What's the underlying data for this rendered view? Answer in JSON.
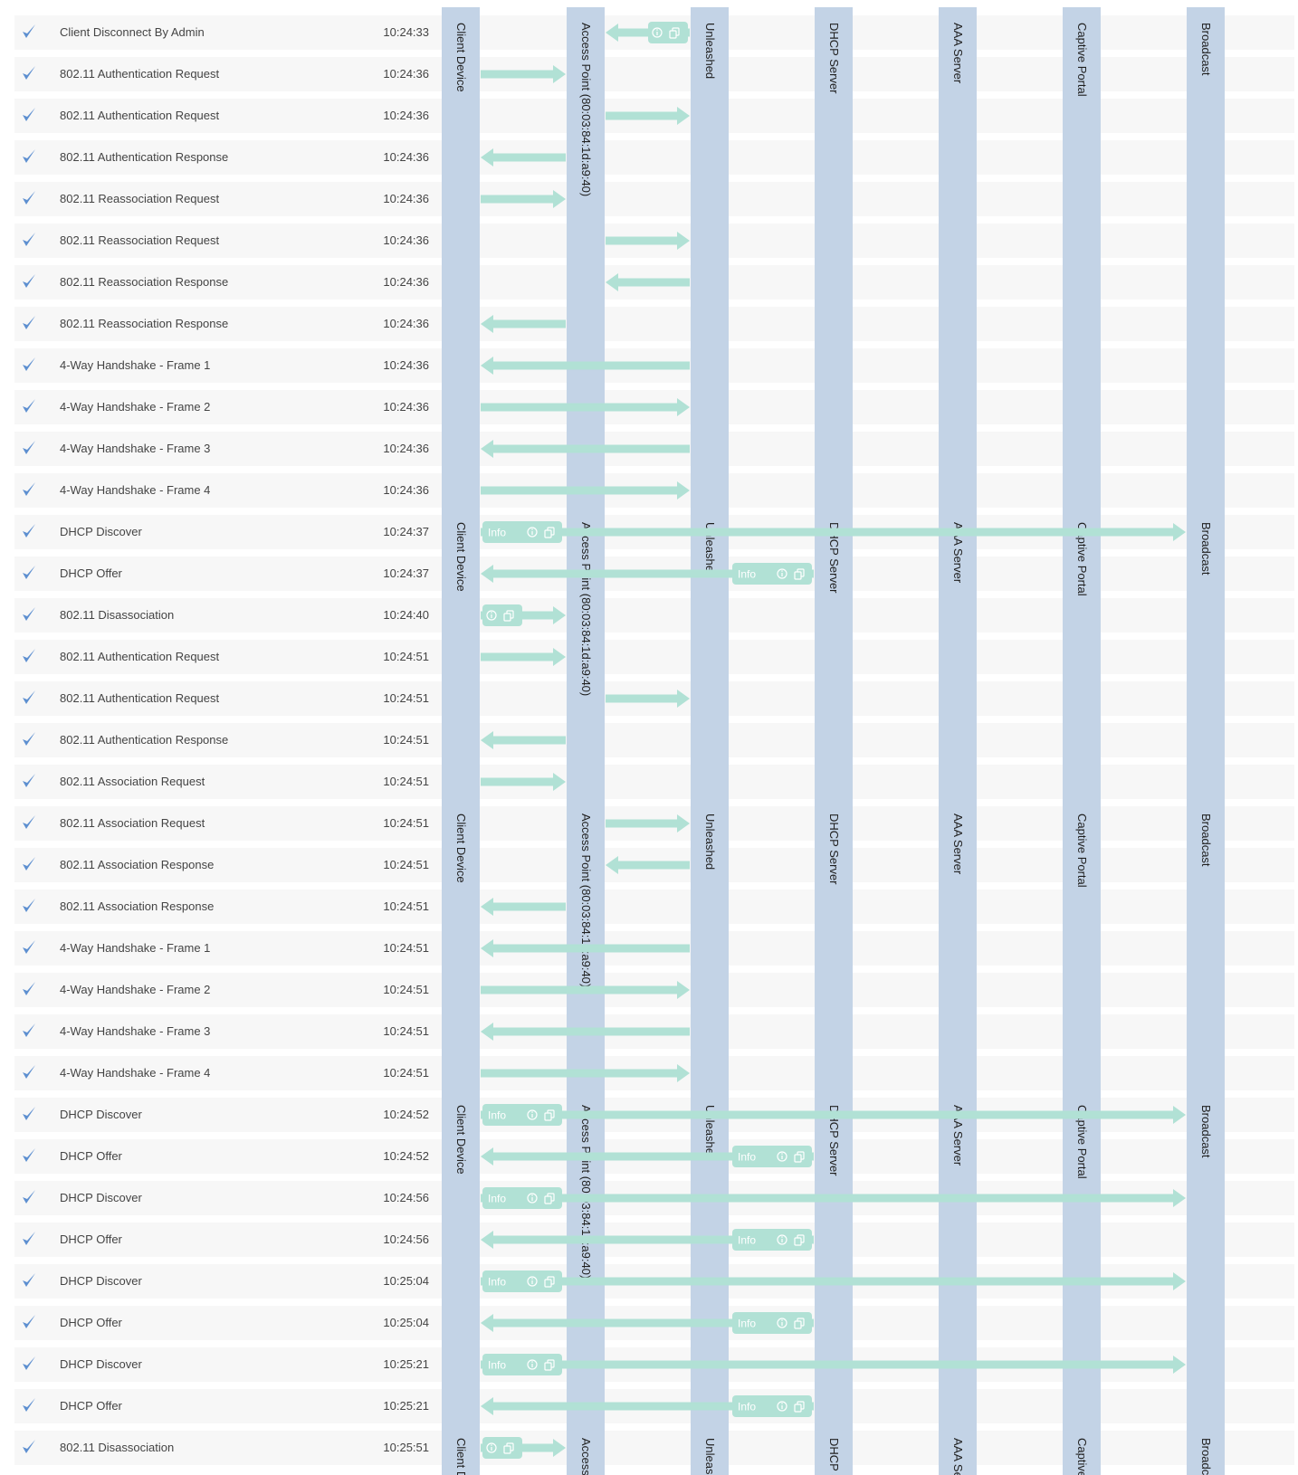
{
  "colors": {
    "row_bg": "#f7f7f7",
    "lane": "#c3d3e6",
    "arrow": "#b1e1d5",
    "check": "#5d8fd0",
    "lane_text": "#1f1f1f"
  },
  "lanes": [
    {
      "key": "client",
      "label": "Client Device"
    },
    {
      "key": "ap",
      "label": "Access Point (80:03:84:1d:a9:40)"
    },
    {
      "key": "unleashed",
      "label": "Unleashed"
    },
    {
      "key": "dhcp",
      "label": "DHCP Server"
    },
    {
      "key": "aaa",
      "label": "AAA Server"
    },
    {
      "key": "portal",
      "label": "Captive Portal"
    },
    {
      "key": "broadcast",
      "label": "Broadcast"
    }
  ],
  "info_label": "Info",
  "events": [
    {
      "label": "Client Disconnect By Admin",
      "time": "10:24:33",
      "from": 2,
      "to": 1,
      "info": "icons"
    },
    {
      "label": "802.11 Authentication Request",
      "time": "10:24:36",
      "from": 0,
      "to": 1
    },
    {
      "label": "802.11 Authentication Request",
      "time": "10:24:36",
      "from": 1,
      "to": 2
    },
    {
      "label": "802.11 Authentication Response",
      "time": "10:24:36",
      "from": 1,
      "to": 0
    },
    {
      "label": "802.11 Reassociation Request",
      "time": "10:24:36",
      "from": 0,
      "to": 1
    },
    {
      "label": "802.11 Reassociation Request",
      "time": "10:24:36",
      "from": 1,
      "to": 2
    },
    {
      "label": "802.11 Reassociation Response",
      "time": "10:24:36",
      "from": 2,
      "to": 1
    },
    {
      "label": "802.11 Reassociation Response",
      "time": "10:24:36",
      "from": 1,
      "to": 0
    },
    {
      "label": "4-Way Handshake - Frame 1",
      "time": "10:24:36",
      "from": 2,
      "to": 0
    },
    {
      "label": "4-Way Handshake - Frame 2",
      "time": "10:24:36",
      "from": 0,
      "to": 2
    },
    {
      "label": "4-Way Handshake - Frame 3",
      "time": "10:24:36",
      "from": 2,
      "to": 0
    },
    {
      "label": "4-Way Handshake - Frame 4",
      "time": "10:24:36",
      "from": 0,
      "to": 2
    },
    {
      "label": "DHCP Discover",
      "time": "10:24:37",
      "from": 0,
      "to": 6,
      "info": "full"
    },
    {
      "label": "DHCP Offer",
      "time": "10:24:37",
      "from": 3,
      "to": 0,
      "info": "full"
    },
    {
      "label": "802.11 Disassociation",
      "time": "10:24:40",
      "from": 0,
      "to": 1,
      "info": "icons"
    },
    {
      "label": "802.11 Authentication Request",
      "time": "10:24:51",
      "from": 0,
      "to": 1
    },
    {
      "label": "802.11 Authentication Request",
      "time": "10:24:51",
      "from": 1,
      "to": 2
    },
    {
      "label": "802.11 Authentication Response",
      "time": "10:24:51",
      "from": 1,
      "to": 0
    },
    {
      "label": "802.11 Association Request",
      "time": "10:24:51",
      "from": 0,
      "to": 1
    },
    {
      "label": "802.11 Association Request",
      "time": "10:24:51",
      "from": 1,
      "to": 2
    },
    {
      "label": "802.11 Association Response",
      "time": "10:24:51",
      "from": 2,
      "to": 1
    },
    {
      "label": "802.11 Association Response",
      "time": "10:24:51",
      "from": 1,
      "to": 0
    },
    {
      "label": "4-Way Handshake - Frame 1",
      "time": "10:24:51",
      "from": 2,
      "to": 0
    },
    {
      "label": "4-Way Handshake - Frame 2",
      "time": "10:24:51",
      "from": 0,
      "to": 2
    },
    {
      "label": "4-Way Handshake - Frame 3",
      "time": "10:24:51",
      "from": 2,
      "to": 0
    },
    {
      "label": "4-Way Handshake - Frame 4",
      "time": "10:24:51",
      "from": 0,
      "to": 2
    },
    {
      "label": "DHCP Discover",
      "time": "10:24:52",
      "from": 0,
      "to": 6,
      "info": "full"
    },
    {
      "label": "DHCP Offer",
      "time": "10:24:52",
      "from": 3,
      "to": 0,
      "info": "full"
    },
    {
      "label": "DHCP Discover",
      "time": "10:24:56",
      "from": 0,
      "to": 6,
      "info": "full"
    },
    {
      "label": "DHCP Offer",
      "time": "10:24:56",
      "from": 3,
      "to": 0,
      "info": "full"
    },
    {
      "label": "DHCP Discover",
      "time": "10:25:04",
      "from": 0,
      "to": 6,
      "info": "full"
    },
    {
      "label": "DHCP Offer",
      "time": "10:25:04",
      "from": 3,
      "to": 0,
      "info": "full"
    },
    {
      "label": "DHCP Discover",
      "time": "10:25:21",
      "from": 0,
      "to": 6,
      "info": "full"
    },
    {
      "label": "DHCP Offer",
      "time": "10:25:21",
      "from": 3,
      "to": 0,
      "info": "full"
    },
    {
      "label": "802.11 Disassociation",
      "time": "10:25:51",
      "from": 0,
      "to": 1,
      "info": "icons"
    }
  ],
  "lane_label_rows": [
    0,
    12,
    19,
    26,
    34
  ]
}
